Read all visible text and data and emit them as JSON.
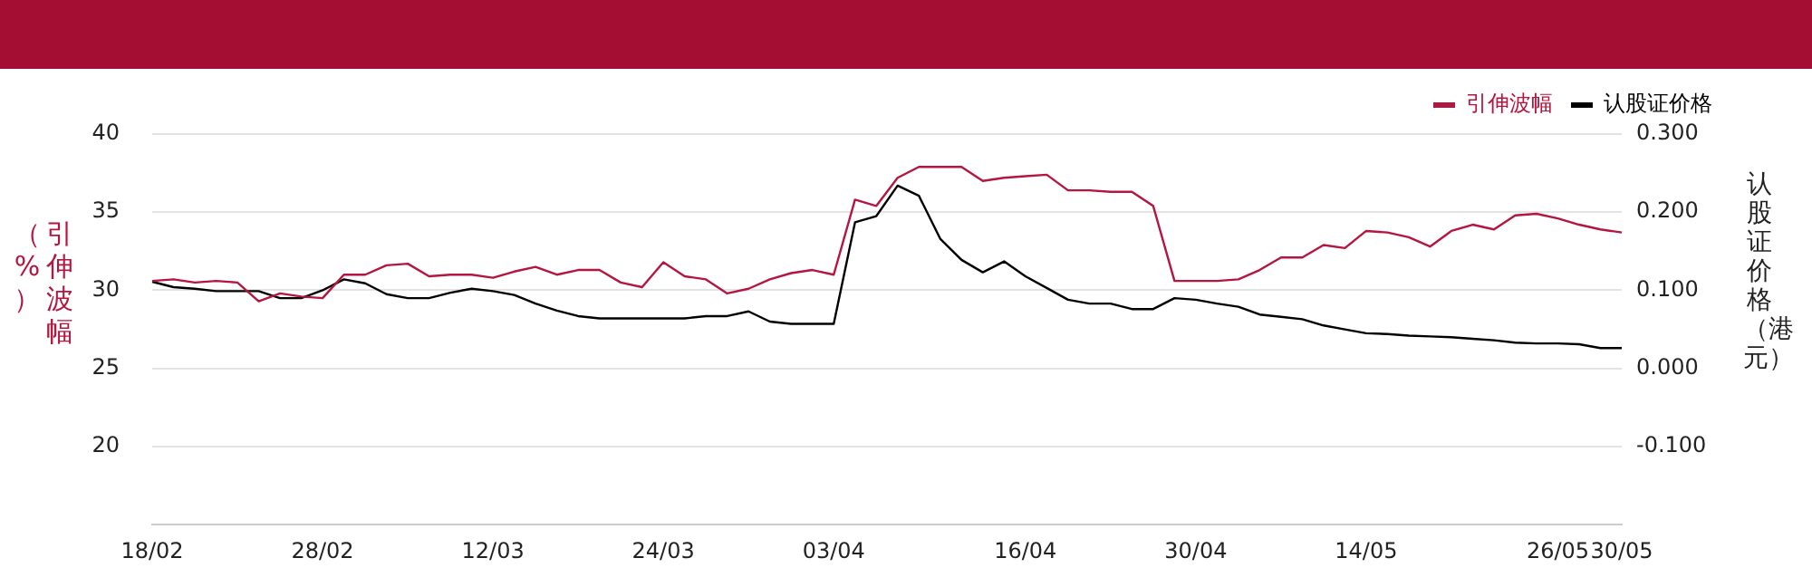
{
  "chart_data": {
    "type": "line",
    "ylabel": "引伸波幅（%）",
    "y2label": "认股证价格（港元）",
    "categories": [
      "18/02",
      null,
      null,
      null,
      null,
      null,
      null,
      null,
      "28/02",
      null,
      null,
      null,
      null,
      null,
      null,
      null,
      "12/03",
      null,
      null,
      null,
      null,
      null,
      null,
      null,
      "24/03",
      null,
      null,
      null,
      null,
      null,
      null,
      null,
      "03/04",
      null,
      null,
      null,
      null,
      null,
      null,
      null,
      null,
      "16/04",
      null,
      null,
      null,
      null,
      null,
      null,
      null,
      "30/04",
      null,
      null,
      null,
      null,
      null,
      null,
      null,
      "14/05",
      null,
      null,
      null,
      null,
      null,
      null,
      null,
      null,
      "26/05",
      null,
      null,
      "30/05"
    ],
    "series": [
      {
        "name": "引伸波幅",
        "color": "#b5163f",
        "values": [
          30.6,
          30.7,
          30.5,
          30.6,
          30.5,
          29.3,
          29.8,
          29.6,
          29.5,
          31.0,
          31.0,
          31.6,
          31.7,
          30.9,
          31.0,
          31.0,
          30.8,
          31.2,
          31.5,
          31.0,
          31.3,
          31.3,
          30.5,
          30.2,
          31.8,
          30.9,
          30.7,
          29.8,
          30.1,
          30.7,
          31.1,
          31.3,
          31.0,
          35.8,
          35.4,
          37.2,
          37.9,
          37.9,
          37.9,
          37.0,
          37.2,
          37.3,
          37.4,
          36.4,
          36.4,
          36.3,
          36.3,
          35.4,
          30.6,
          30.6,
          30.6,
          30.7,
          31.3,
          32.1,
          32.1,
          32.9,
          32.7,
          33.8,
          33.7,
          33.4,
          32.8,
          33.8,
          34.2,
          33.9,
          34.8,
          34.9,
          34.6,
          34.2,
          33.9,
          33.7
        ]
      },
      {
        "name": "认股证价格",
        "color": "#000000",
        "axis": "y2",
        "values": [
          0.111,
          0.104,
          0.102,
          0.099,
          0.099,
          0.099,
          0.09,
          0.09,
          0.1,
          0.114,
          0.109,
          0.095,
          0.09,
          0.09,
          0.097,
          0.102,
          0.099,
          0.094,
          0.083,
          0.074,
          0.067,
          0.064,
          0.064,
          0.064,
          0.064,
          0.064,
          0.067,
          0.067,
          0.073,
          0.06,
          0.057,
          0.057,
          0.057,
          0.187,
          0.195,
          0.234,
          0.221,
          0.166,
          0.139,
          0.123,
          0.137,
          0.118,
          0.103,
          0.088,
          0.083,
          0.083,
          0.076,
          0.076,
          0.09,
          0.088,
          0.083,
          0.079,
          0.069,
          0.066,
          0.063,
          0.055,
          0.05,
          0.045,
          0.044,
          0.042,
          0.041,
          0.04,
          0.038,
          0.036,
          0.033,
          0.032,
          0.032,
          0.031,
          0.026,
          0.026
        ]
      }
    ],
    "ylim": [
      15,
      40
    ],
    "yticks": [
      20,
      25,
      30,
      35,
      40
    ],
    "y2lim": [
      -0.2,
      0.3
    ],
    "y2ticks": [
      {
        "value": -0.1,
        "label": "-0.100"
      },
      {
        "value": 0,
        "label": "0.000"
      },
      {
        "value": 0.1,
        "label": "0.100"
      },
      {
        "value": 0.2,
        "label": "0.200"
      },
      {
        "value": 0.3,
        "label": "0.300"
      }
    ],
    "grid": "y",
    "legend": "top right",
    "marker": "none"
  }
}
